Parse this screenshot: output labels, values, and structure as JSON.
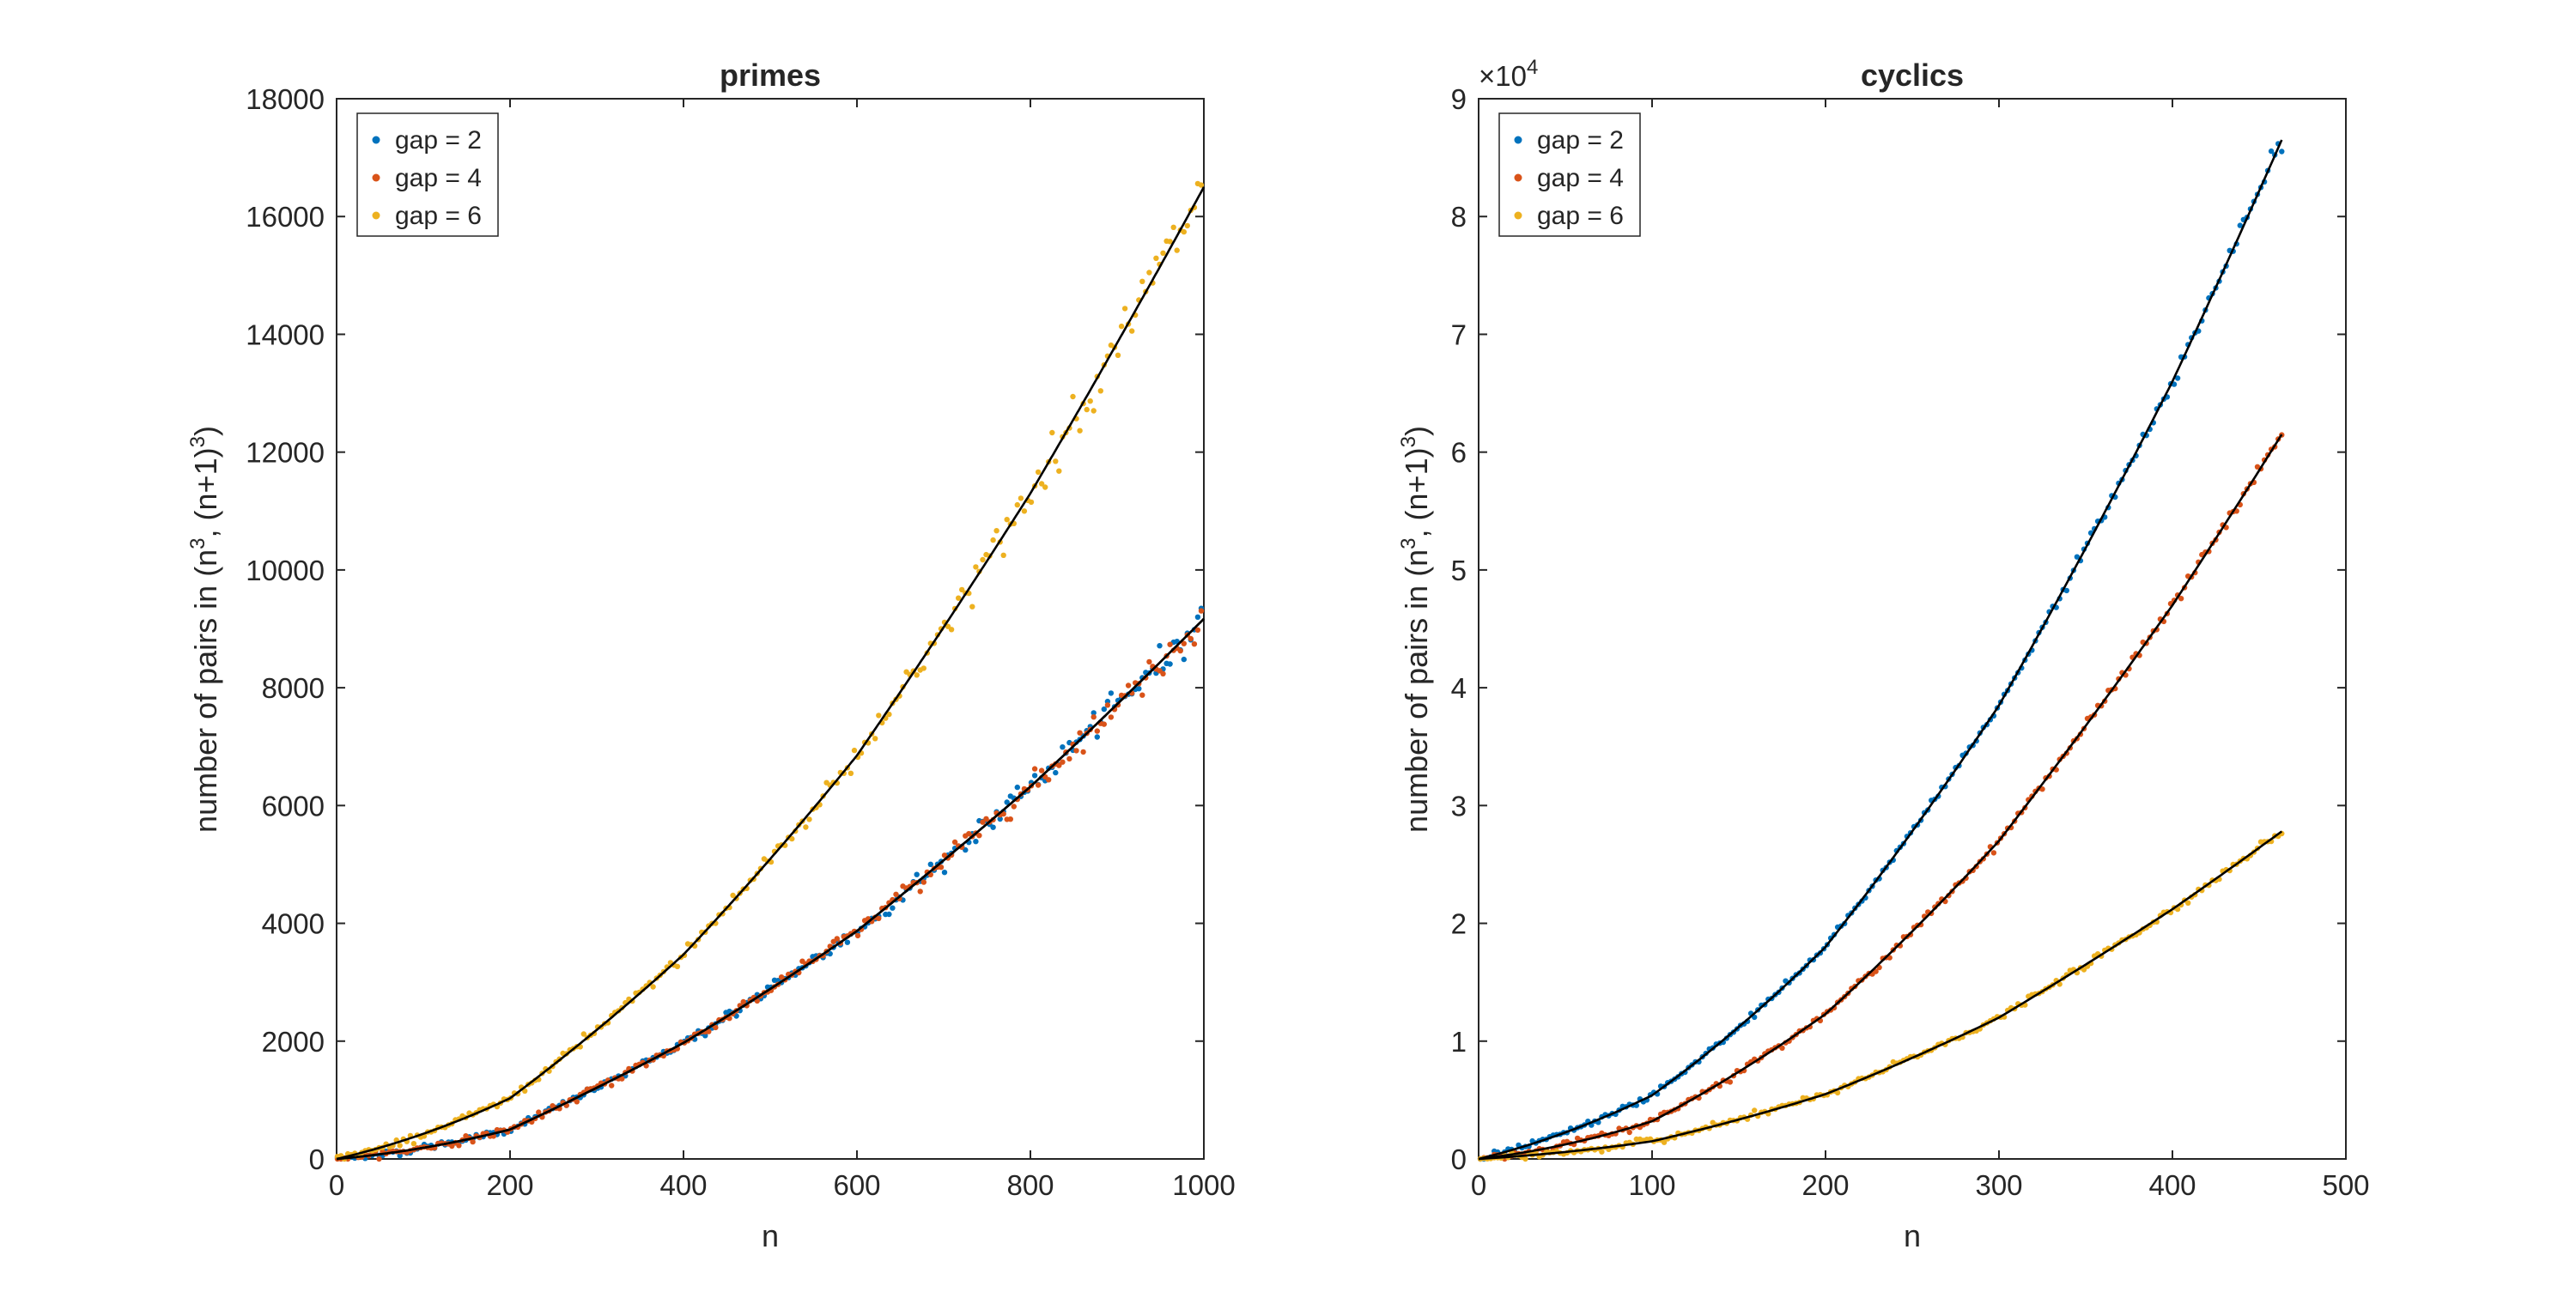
{
  "chart_data": [
    {
      "type": "scatter",
      "title": "primes",
      "xlabel": "n",
      "ylabel_parts": [
        "number of pairs in (n",
        "3",
        ", (n+1)",
        "3",
        ")"
      ],
      "xlim": [
        0,
        1000
      ],
      "ylim": [
        0,
        18000
      ],
      "xticks": [
        0,
        200,
        400,
        600,
        800,
        1000
      ],
      "xtick_labels": [
        "0",
        "200",
        "400",
        "600",
        "800",
        "1000"
      ],
      "yticks": [
        0,
        2000,
        4000,
        6000,
        8000,
        10000,
        12000,
        14000,
        16000,
        18000
      ],
      "ytick_labels": [
        "0",
        "2000",
        "4000",
        "6000",
        "8000",
        "10000",
        "12000",
        "14000",
        "16000",
        "18000"
      ],
      "y_multiplier": null,
      "grid": false,
      "legend_position": "top-left",
      "n_max": 1000,
      "step": 4,
      "noise": 0.014,
      "series": [
        {
          "name": "gap = 2",
          "color": "#0072BD",
          "fit_values": [
            [
              0,
              0
            ],
            [
              200,
              500
            ],
            [
              400,
              1970
            ],
            [
              600,
              3870
            ],
            [
              800,
              6320
            ],
            [
              1000,
              9170
            ]
          ]
        },
        {
          "name": "gap = 4",
          "color": "#D95319",
          "fit_values": [
            [
              0,
              0
            ],
            [
              200,
              500
            ],
            [
              400,
              1970
            ],
            [
              600,
              3870
            ],
            [
              800,
              6320
            ],
            [
              1000,
              9170
            ]
          ]
        },
        {
          "name": "gap = 6",
          "color": "#EDB120",
          "fit_values": [
            [
              0,
              0
            ],
            [
              200,
              1030
            ],
            [
              400,
              3470
            ],
            [
              600,
              6850
            ],
            [
              800,
              11300
            ],
            [
              1000,
              16500
            ]
          ]
        }
      ],
      "fit_line_color": "#000000"
    },
    {
      "type": "scatter",
      "title": "cyclics",
      "xlabel": "n",
      "ylabel_parts": [
        "number of pairs in (n",
        "3",
        ", (n+1)",
        "3",
        ")"
      ],
      "xlim": [
        0,
        500
      ],
      "ylim": [
        0,
        9
      ],
      "xticks": [
        0,
        100,
        200,
        300,
        400,
        500
      ],
      "xtick_labels": [
        "0",
        "100",
        "200",
        "300",
        "400",
        "500"
      ],
      "yticks": [
        0,
        1,
        2,
        3,
        4,
        5,
        6,
        7,
        8,
        9
      ],
      "ytick_labels": [
        "0",
        "1",
        "2",
        "3",
        "4",
        "5",
        "6",
        "7",
        "8",
        "9"
      ],
      "y_multiplier": {
        "base": "×10",
        "exponent": "4"
      },
      "grid": false,
      "legend_position": "top-left",
      "n_max": 463,
      "step": 2,
      "noise": 0.004,
      "series": [
        {
          "name": "gap = 2",
          "color": "#0072BD",
          "fit_values": [
            [
              0,
              0
            ],
            [
              100,
              0.54
            ],
            [
              200,
              1.8
            ],
            [
              300,
              3.85
            ],
            [
              400,
              6.6
            ],
            [
              463,
              8.65
            ]
          ]
        },
        {
          "name": "gap = 4",
          "color": "#D95319",
          "fit_values": [
            [
              0,
              0
            ],
            [
              100,
              0.32
            ],
            [
              200,
              1.23
            ],
            [
              300,
              2.7
            ],
            [
              400,
              4.7
            ],
            [
              463,
              6.15
            ]
          ]
        },
        {
          "name": "gap = 6",
          "color": "#EDB120",
          "fit_values": [
            [
              0,
              0
            ],
            [
              100,
              0.15
            ],
            [
              200,
              0.55
            ],
            [
              300,
              1.2
            ],
            [
              400,
              2.12
            ],
            [
              463,
              2.78
            ]
          ]
        }
      ],
      "fit_line_color": "#000000"
    }
  ]
}
